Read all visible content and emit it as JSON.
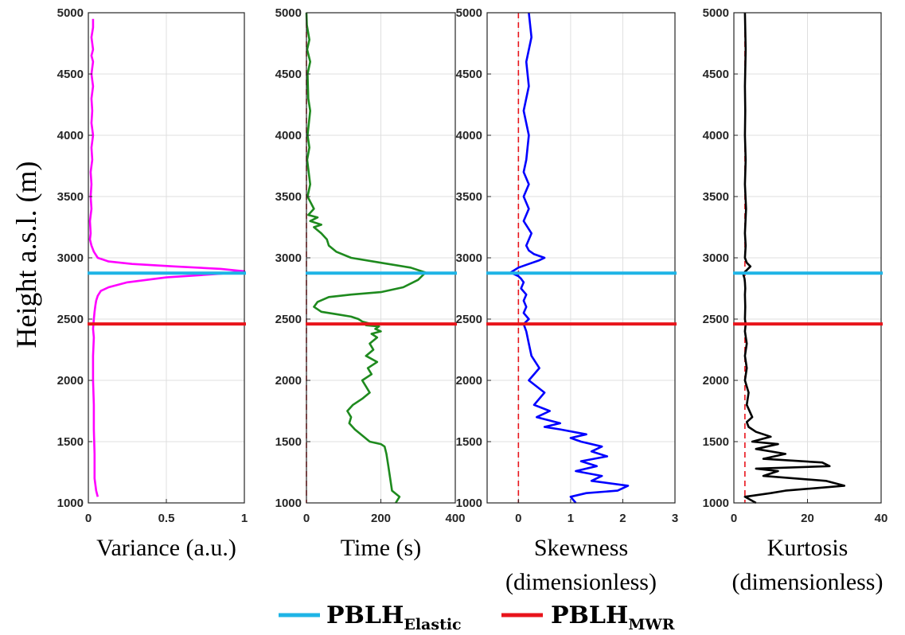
{
  "ylabel": "Height a.s.l. (m)",
  "legend": [
    {
      "main": "PBLH",
      "sub": "Elastic",
      "color": "#1EB4E6"
    },
    {
      "main": "PBLH",
      "sub": "MWR",
      "color": "#E8141B"
    }
  ],
  "chart_data": [
    {
      "type": "line",
      "xlabel": [
        "Variance (a.u.)"
      ],
      "xlim": [
        0,
        1
      ],
      "xticks": [
        0,
        0.5,
        1
      ],
      "xtick_labels": [
        "0",
        "0.5",
        "1"
      ],
      "ylim": [
        1000,
        5000
      ],
      "yticks": [
        1000,
        1500,
        2000,
        2500,
        3000,
        3500,
        4000,
        4500,
        5000
      ],
      "grid": true,
      "color": "#FF00FF",
      "hlines": [
        {
          "y": 2875,
          "color": "#1EB4E6"
        },
        {
          "y": 2460,
          "color": "#E8141B"
        }
      ],
      "series": [
        {
          "x": [
            0.06,
            0.05,
            0.04,
            0.04,
            0.035,
            0.035,
            0.03,
            0.03,
            0.035,
            0.03,
            0.035,
            0.04,
            0.045,
            0.05,
            0.06,
            0.08,
            0.13,
            0.25,
            0.5,
            0.85,
            1.0,
            0.85,
            0.55,
            0.28,
            0.13,
            0.06,
            0.035,
            0.02,
            0.01,
            0.015,
            0.01,
            0.02,
            0.015,
            0.02,
            0.015,
            0.025,
            0.02,
            0.03,
            0.02,
            0.025,
            0.02,
            0.03,
            0.02,
            0.03,
            0.02,
            0.03,
            0.02,
            0.03,
            0.03
          ],
          "y": [
            1050,
            1100,
            1200,
            1400,
            1600,
            1800,
            2000,
            2200,
            2350,
            2420,
            2500,
            2560,
            2610,
            2650,
            2690,
            2730,
            2760,
            2800,
            2840,
            2870,
            2890,
            2910,
            2930,
            2950,
            2970,
            3000,
            3050,
            3100,
            3150,
            3200,
            3300,
            3400,
            3500,
            3600,
            3700,
            3800,
            3900,
            4000,
            4100,
            4200,
            4300,
            4400,
            4500,
            4600,
            4650,
            4700,
            4800,
            4880,
            4950
          ]
        }
      ]
    },
    {
      "type": "line",
      "xlabel": [
        "Time (s)"
      ],
      "xlim": [
        0,
        400
      ],
      "xticks": [
        0,
        200,
        400
      ],
      "xtick_labels": [
        "0",
        "200",
        "400"
      ],
      "ylim": [
        1000,
        5000
      ],
      "yticks": [
        1000,
        1500,
        2000,
        2500,
        3000,
        3500,
        4000,
        4500,
        5000
      ],
      "grid": true,
      "color": "#1E8A1E",
      "vline": {
        "x": 0,
        "color": "#E8141B"
      },
      "hlines": [
        {
          "y": 2875,
          "color": "#1EB4E6"
        },
        {
          "y": 2460,
          "color": "#E8141B"
        }
      ],
      "series": [
        {
          "x": [
            240,
            250,
            230,
            225,
            220,
            215,
            210,
            200,
            170,
            150,
            130,
            115,
            120,
            110,
            125,
            150,
            170,
            160,
            150,
            175,
            165,
            190,
            160,
            180,
            170,
            190,
            175,
            200,
            185,
            195,
            160,
            175,
            150,
            140,
            120,
            80,
            40,
            20,
            30,
            60,
            120,
            200,
            260,
            300,
            320,
            280,
            200,
            120,
            80,
            60,
            55,
            40,
            20,
            40,
            10,
            30,
            5,
            20,
            3,
            10,
            2,
            8,
            3,
            10,
            5,
            3,
            10,
            2,
            8,
            1,
            0
          ],
          "y": [
            1000,
            1050,
            1100,
            1200,
            1300,
            1400,
            1460,
            1480,
            1500,
            1550,
            1600,
            1650,
            1700,
            1750,
            1800,
            1850,
            1900,
            1950,
            2000,
            2050,
            2100,
            2150,
            2200,
            2250,
            2300,
            2350,
            2380,
            2400,
            2420,
            2440,
            2450,
            2460,
            2480,
            2500,
            2520,
            2540,
            2560,
            2600,
            2640,
            2680,
            2700,
            2720,
            2760,
            2820,
            2880,
            2920,
            2960,
            3000,
            3050,
            3100,
            3150,
            3200,
            3250,
            3270,
            3300,
            3330,
            3350,
            3400,
            3500,
            3600,
            3800,
            3900,
            4000,
            4200,
            4300,
            4500,
            4600,
            4700,
            4780,
            4900,
            5000
          ]
        }
      ]
    },
    {
      "type": "line",
      "xlabel": [
        "Skewness",
        "(dimensionless)"
      ],
      "xlim": [
        -0.6,
        3
      ],
      "xticks": [
        0,
        1,
        2,
        3
      ],
      "xtick_labels": [
        "0",
        "1",
        "2",
        "3"
      ],
      "ylim": [
        1000,
        5000
      ],
      "yticks": [
        1000,
        1500,
        2000,
        2500,
        3000,
        3500,
        4000,
        4500,
        5000
      ],
      "grid": true,
      "color": "#0000FF",
      "vline": {
        "x": 0,
        "color": "#E8141B"
      },
      "hlines": [
        {
          "y": 2875,
          "color": "#1EB4E6"
        },
        {
          "y": 2460,
          "color": "#E8141B"
        }
      ],
      "series": [
        {
          "x": [
            1.1,
            1.0,
            1.3,
            1.9,
            2.1,
            1.4,
            1.6,
            1.1,
            1.5,
            1.2,
            1.7,
            1.4,
            1.6,
            1.2,
            1.0,
            1.3,
            0.8,
            0.5,
            0.8,
            0.35,
            0.6,
            0.3,
            0.5,
            0.2,
            0.4,
            0.25,
            0.2,
            0.15,
            0.1,
            0.2,
            0.1,
            0.15,
            0.1,
            0.15,
            0.05,
            0.1,
            0.05,
            0.0,
            -0.15,
            0.0,
            0.2,
            0.4,
            0.5,
            0.3,
            0.2,
            0.15,
            0.25,
            0.1,
            0.2,
            0.1,
            0.2,
            0.1,
            0.15,
            0.2,
            0.1,
            0.2,
            0.15,
            0.25,
            0.2
          ],
          "y": [
            1000,
            1050,
            1080,
            1100,
            1140,
            1180,
            1220,
            1260,
            1300,
            1340,
            1380,
            1420,
            1460,
            1500,
            1530,
            1560,
            1600,
            1620,
            1650,
            1700,
            1750,
            1800,
            1900,
            2000,
            2100,
            2200,
            2300,
            2400,
            2460,
            2500,
            2550,
            2600,
            2650,
            2700,
            2750,
            2800,
            2830,
            2850,
            2880,
            2920,
            2950,
            2980,
            3000,
            3030,
            3060,
            3100,
            3200,
            3300,
            3400,
            3500,
            3600,
            3700,
            3800,
            4000,
            4200,
            4400,
            4600,
            4800,
            5000
          ]
        }
      ]
    },
    {
      "type": "line",
      "xlabel": [
        "Kurtosis",
        "(dimensionless)"
      ],
      "xlim": [
        0,
        40
      ],
      "xticks": [
        0,
        20,
        40
      ],
      "xtick_labels": [
        "0",
        "20",
        "40"
      ],
      "ylim": [
        1000,
        5000
      ],
      "yticks": [
        1000,
        1500,
        2000,
        2500,
        3000,
        3500,
        4000,
        4500,
        5000
      ],
      "grid": true,
      "color": "#000000",
      "vline": {
        "x": 3,
        "color": "#E8141B"
      },
      "hlines": [
        {
          "y": 2875,
          "color": "#1EB4E6"
        },
        {
          "y": 2460,
          "color": "#E8141B"
        }
      ],
      "series": [
        {
          "x": [
            6,
            3,
            10,
            14,
            30,
            25,
            8,
            12,
            6,
            26,
            24,
            8,
            14,
            6,
            12,
            5,
            10,
            6,
            4,
            3.5,
            5,
            3.5,
            4,
            3,
            3.5,
            3,
            3.5,
            3,
            3.2,
            3,
            3.1,
            3,
            3.1,
            3,
            2.9,
            2.5,
            3.5,
            4.5,
            3.5,
            3,
            3.2,
            3,
            3.3,
            3,
            3.2,
            3,
            3.1,
            3,
            3.2,
            3
          ],
          "y": [
            1000,
            1050,
            1080,
            1100,
            1140,
            1180,
            1220,
            1260,
            1280,
            1300,
            1330,
            1360,
            1400,
            1440,
            1480,
            1500,
            1540,
            1580,
            1620,
            1660,
            1700,
            1800,
            1900,
            2000,
            2100,
            2200,
            2300,
            2400,
            2460,
            2500,
            2600,
            2700,
            2750,
            2800,
            2830,
            2870,
            2900,
            2930,
            2960,
            3000,
            3100,
            3200,
            3400,
            3600,
            3800,
            4000,
            4200,
            4400,
            4700,
            5000
          ]
        }
      ]
    }
  ]
}
